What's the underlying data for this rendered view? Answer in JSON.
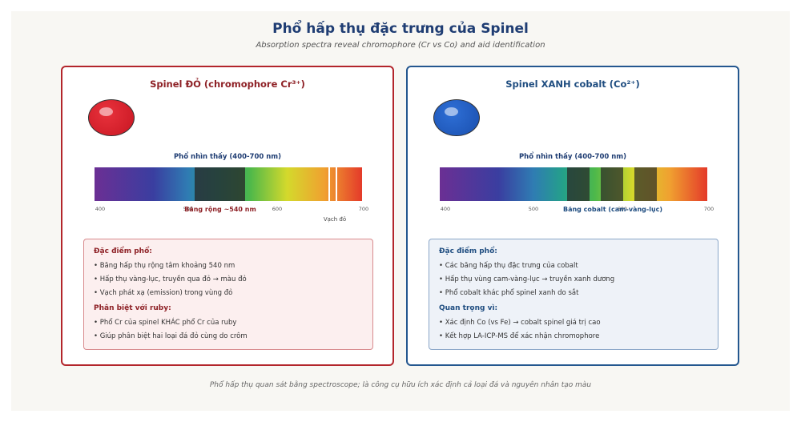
{
  "header": {
    "title": "Phổ hấp thụ đặc trưng của Spinel",
    "subtitle": "Absorption spectra reveal chromophore (Cr vs Co) and aid identification"
  },
  "footer": {
    "text": "Phổ hấp thụ quan sát bằng spectroscope; là công cụ hữu ích xác định cả loại đá và nguyên nhân tạo màu"
  },
  "colors": {
    "red_accent": "#b3252b",
    "blue_accent": "#24578f",
    "red_gem": "#d9202b",
    "blue_gem": "#1f5fc8"
  },
  "red_panel": {
    "title": "Spinel ĐỎ (chromophore Cr³⁺)",
    "gem_icon": "red-gem-icon",
    "spectrum_label": "Phổ nhìn thấy (400-700 nm)",
    "ticks": [
      "400",
      "500",
      "600",
      "700"
    ],
    "band_label": "Băng rộng ~540 nm",
    "line_label": "Vạch đỏ",
    "features_heading": "Đặc điểm phổ:",
    "features": [
      "• Băng hấp thụ rộng tâm khoảng 540 nm",
      "• Hấp thụ vàng-lục, truyền qua đỏ → màu đỏ",
      "• Vạch phát xạ (emission) trong vùng đỏ"
    ],
    "second_heading": "Phân biệt với ruby:",
    "second_items": [
      "• Phổ Cr của spinel KHÁC phổ Cr của ruby",
      "• Giúp phân biệt hai loại đá đỏ cùng do crôm"
    ]
  },
  "blue_panel": {
    "title": "Spinel XANH cobalt (Co²⁺)",
    "gem_icon": "blue-gem-icon",
    "spectrum_label": "Phổ nhìn thấy (400-700 nm)",
    "ticks": [
      "400",
      "500",
      "600",
      "700"
    ],
    "band_label": "Băng cobalt (cam-vàng-lục)",
    "features_heading": "Đặc điểm phổ:",
    "features": [
      "• Các băng hấp thụ đặc trưng của cobalt",
      "• Hấp thụ vùng cam-vàng-lục → truyền xanh dương",
      "• Phổ cobalt khác phổ spinel xanh do sắt"
    ],
    "second_heading": "Quan trọng vì:",
    "second_items": [
      "• Xác định Co (vs Fe) → cobalt spinel giá trị cao",
      "• Kết hợp LA-ICP-MS để xác nhận chromophore"
    ]
  }
}
